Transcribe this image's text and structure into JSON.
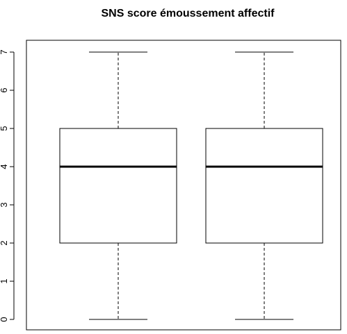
{
  "chart_data": {
    "type": "boxplot",
    "title": "SNS score émoussement affectif",
    "xlabel": "",
    "ylabel": "",
    "ylim": [
      0,
      7
    ],
    "yticks": [
      0,
      1,
      2,
      3,
      4,
      5,
      6,
      7
    ],
    "grid": false,
    "series": [
      {
        "min": 0,
        "q1": 2,
        "median": 4,
        "q3": 5,
        "max": 7
      },
      {
        "min": 0,
        "q1": 2,
        "median": 4,
        "q3": 5,
        "max": 7
      }
    ]
  }
}
